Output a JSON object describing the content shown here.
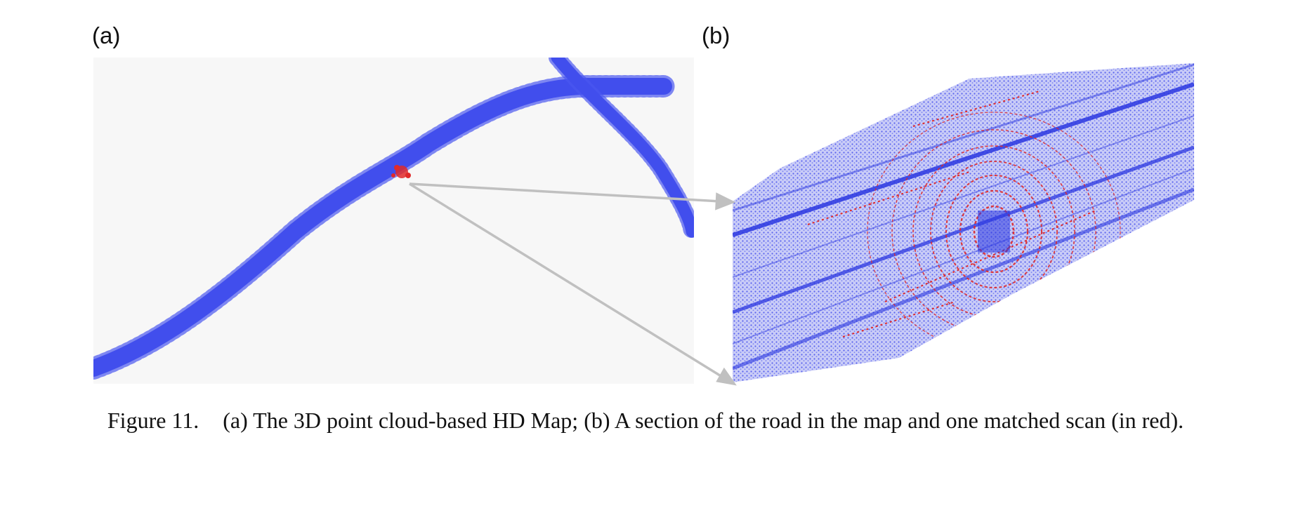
{
  "figure": {
    "panel_a_label": "(a)",
    "panel_b_label": "(b)",
    "caption_number": "Figure  11.",
    "caption_text": "(a) The 3D point cloud-based HD Map; (b) A section of the road in the map and one matched scan (in red)."
  },
  "colors": {
    "map_points": "#2d3be8",
    "scan_points": "#e02a2a",
    "arrow": "#c0c0c0",
    "panel_a_background": "#f7f7f7"
  }
}
